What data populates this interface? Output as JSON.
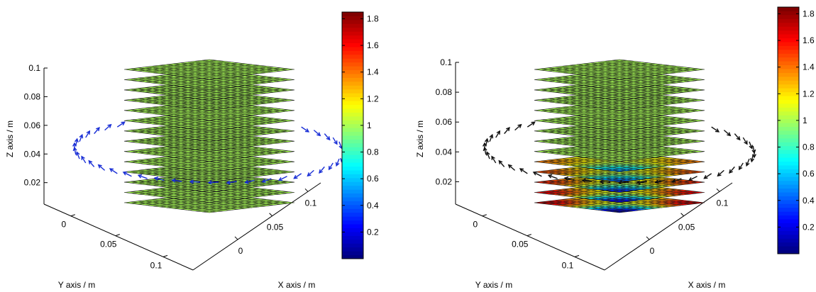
{
  "chart_data": [
    {
      "type": "3d-surface",
      "panel": "left",
      "title": "",
      "xlabel": "X axis / m",
      "ylabel": "Y axis / m",
      "zlabel": "Z axis / m",
      "x_ticks": [
        "0",
        "0.05",
        "0.1"
      ],
      "y_ticks": [
        "0",
        "0.05",
        "0.1"
      ],
      "z_ticks": [
        "0.02",
        "0.04",
        "0.06",
        "0.08",
        "0.1"
      ],
      "zlim": [
        0.005,
        0.1
      ],
      "grid": false,
      "layers": 14,
      "layer_z_range": [
        0.01,
        0.1
      ],
      "grid_cells": 12,
      "layer_value": 1.0,
      "colorbar": {
        "range": [
          0,
          1.85
        ],
        "ticks": [
          "0.2",
          "0.4",
          "0.6",
          "0.8",
          "1",
          "1.2",
          "1.4",
          "1.6",
          "1.8"
        ],
        "colormap": "jet"
      },
      "arrows": {
        "color": "#1a2fd6",
        "plane_z": 0.05,
        "description": ""
      }
    },
    {
      "type": "3d-surface",
      "panel": "right",
      "title": "",
      "xlabel": "X axis / m",
      "ylabel": "Y axis / m",
      "zlabel": "Z axis / m",
      "x_ticks": [
        "0",
        "0.05",
        "0.1"
      ],
      "y_ticks": [
        "0",
        "0.05",
        "0.1"
      ],
      "z_ticks": [
        "0.02",
        "0.04",
        "0.06",
        "0.08",
        "0.1"
      ],
      "zlim": [
        0.005,
        0.1
      ],
      "grid": false,
      "layers": 14,
      "layer_z_range": [
        0.01,
        0.1
      ],
      "grid_cells": 12,
      "layer_value": 1.0,
      "bottom_layers_varied": 5,
      "colorbar": {
        "range": [
          0,
          1.85
        ],
        "ticks": [
          "0.2",
          "0.4",
          "0.6",
          "0.8",
          "1",
          "1.2",
          "1.4",
          "1.6",
          "1.8"
        ],
        "colormap": "jet"
      },
      "arrows": {
        "color": "#111111",
        "plane_z": 0.05,
        "description": ""
      }
    }
  ]
}
